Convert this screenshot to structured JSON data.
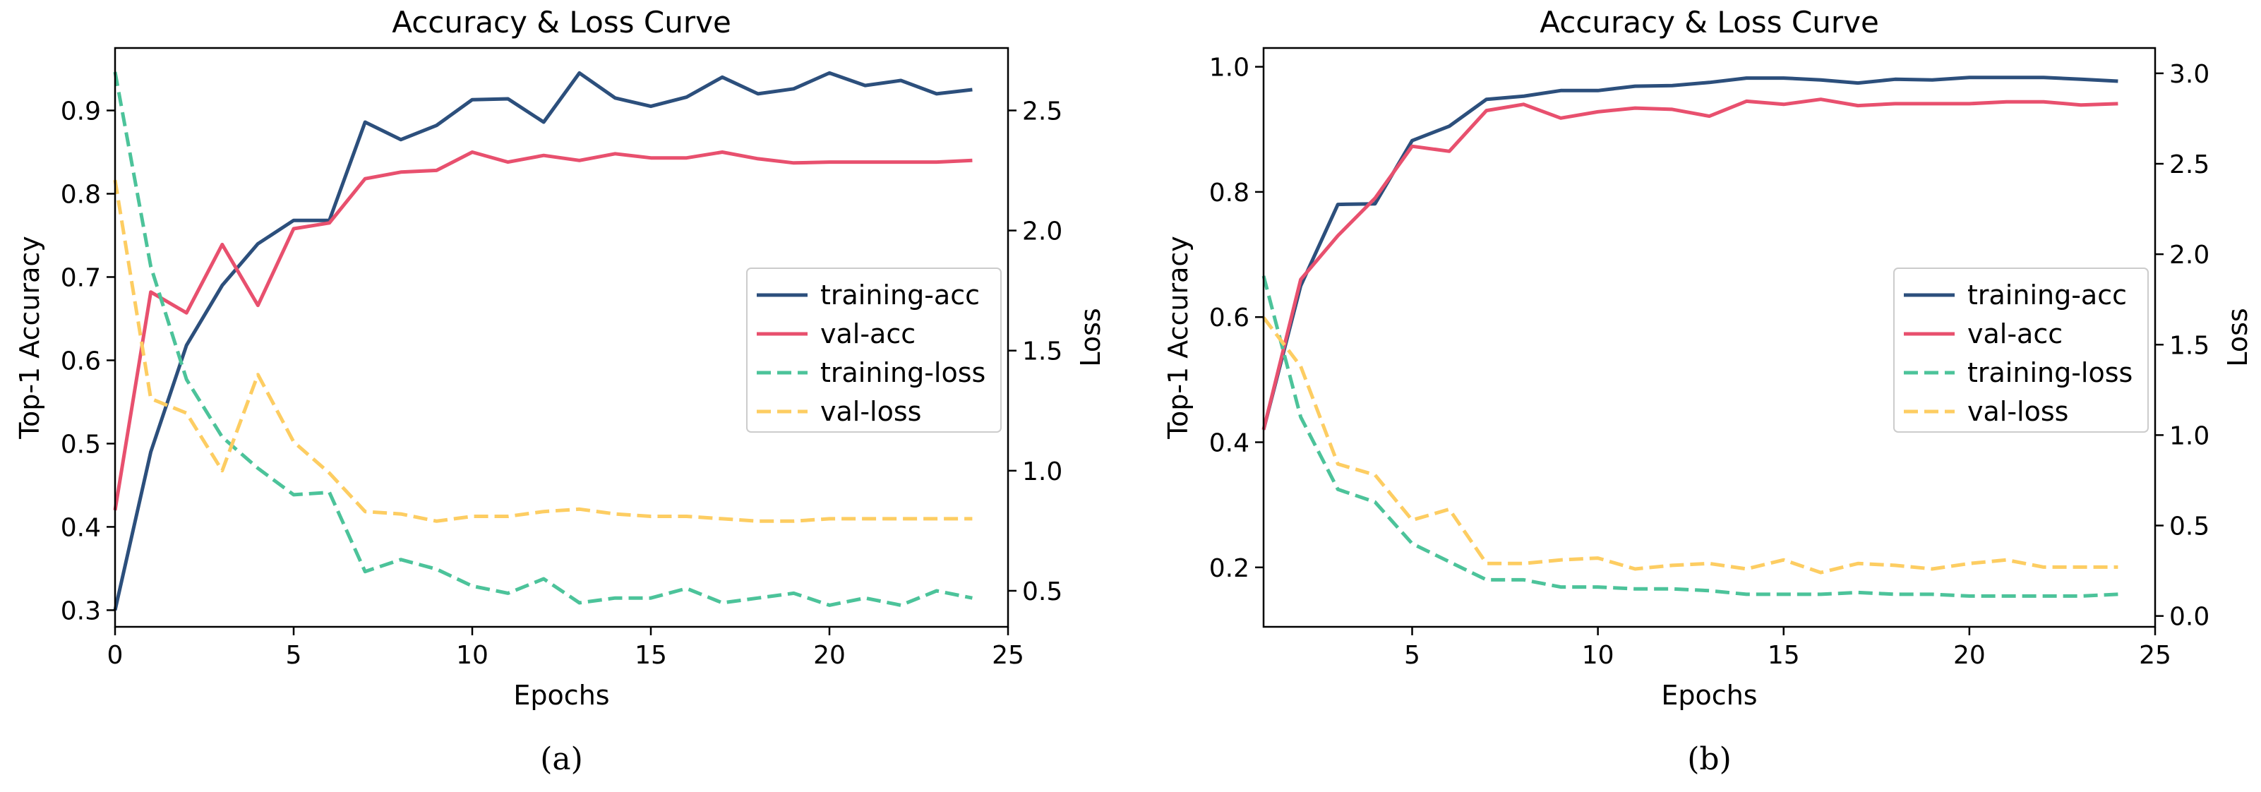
{
  "chart_data": [
    {
      "type": "line",
      "title": "Accuracy & Loss Curve",
      "caption": "(a)",
      "xlabel": "Epochs",
      "ylabel": "Top-1 Accuracy",
      "y2label": "Loss",
      "xlim": [
        0,
        25
      ],
      "ylim": [
        0.28,
        0.975
      ],
      "y2lim": [
        0.35,
        2.76
      ],
      "xticks": [
        0,
        5,
        10,
        15,
        20,
        25
      ],
      "yticks": [
        0.3,
        0.4,
        0.5,
        0.6,
        0.7,
        0.8,
        0.9
      ],
      "y2ticks": [
        0.5,
        1.0,
        1.5,
        2.0,
        2.5
      ],
      "grid": false,
      "legend": "center-right",
      "x": [
        0,
        1,
        2,
        3,
        4,
        5,
        6,
        7,
        8,
        9,
        10,
        11,
        12,
        13,
        14,
        15,
        16,
        17,
        18,
        19,
        20,
        21,
        22,
        23,
        24
      ],
      "series": [
        {
          "name": "training-acc",
          "axis": "left",
          "style": "solid",
          "color": "#2c4f7c",
          "values": [
            0.3,
            0.49,
            0.618,
            0.69,
            0.74,
            0.768,
            0.768,
            0.886,
            0.865,
            0.882,
            0.913,
            0.914,
            0.886,
            0.945,
            0.915,
            0.905,
            0.916,
            0.94,
            0.92,
            0.926,
            0.945,
            0.93,
            0.936,
            0.92,
            0.925
          ]
        },
        {
          "name": "val-acc",
          "axis": "left",
          "style": "solid",
          "color": "#e8506e",
          "values": [
            0.42,
            0.682,
            0.657,
            0.739,
            0.666,
            0.758,
            0.765,
            0.818,
            0.826,
            0.828,
            0.85,
            0.838,
            0.846,
            0.84,
            0.848,
            0.843,
            0.843,
            0.85,
            0.842,
            0.837,
            0.838,
            0.838,
            0.838,
            0.838,
            0.84
          ]
        },
        {
          "name": "training-loss",
          "axis": "right",
          "style": "dashed",
          "color": "#4cc39a",
          "values": [
            2.66,
            1.85,
            1.38,
            1.14,
            1.01,
            0.9,
            0.91,
            0.58,
            0.63,
            0.59,
            0.52,
            0.49,
            0.55,
            0.45,
            0.47,
            0.47,
            0.51,
            0.45,
            0.47,
            0.49,
            0.44,
            0.47,
            0.44,
            0.5,
            0.47
          ]
        },
        {
          "name": "val-loss",
          "axis": "right",
          "style": "dashed",
          "color": "#fdcd62",
          "values": [
            2.21,
            1.3,
            1.24,
            1.0,
            1.4,
            1.12,
            0.99,
            0.83,
            0.82,
            0.79,
            0.81,
            0.81,
            0.83,
            0.84,
            0.82,
            0.81,
            0.81,
            0.8,
            0.79,
            0.79,
            0.8,
            0.8,
            0.8,
            0.8,
            0.8
          ]
        }
      ]
    },
    {
      "type": "line",
      "title": "Accuracy & Loss Curve",
      "caption": "(b)",
      "xlabel": "Epochs",
      "ylabel": "Top-1 Accuracy",
      "y2label": "Loss",
      "xlim": [
        1,
        25
      ],
      "ylim": [
        0.105,
        1.03
      ],
      "y2lim": [
        -0.06,
        3.14
      ],
      "xticks": [
        5,
        10,
        15,
        20,
        25
      ],
      "yticks": [
        0.2,
        0.4,
        0.6,
        0.8,
        1.0
      ],
      "y2ticks": [
        0.0,
        0.5,
        1.0,
        1.5,
        2.0,
        2.5,
        3.0
      ],
      "grid": false,
      "legend": "center-right",
      "x": [
        1,
        2,
        3,
        4,
        5,
        6,
        7,
        8,
        9,
        10,
        11,
        12,
        13,
        14,
        15,
        16,
        17,
        18,
        19,
        20,
        21,
        22,
        23,
        24
      ],
      "series": [
        {
          "name": "training-acc",
          "axis": "left",
          "style": "solid",
          "color": "#2c4f7c",
          "values": [
            0.42,
            0.65,
            0.78,
            0.781,
            0.882,
            0.905,
            0.948,
            0.953,
            0.962,
            0.962,
            0.969,
            0.97,
            0.975,
            0.982,
            0.982,
            0.979,
            0.974,
            0.98,
            0.979,
            0.983,
            0.983,
            0.983,
            0.98,
            0.977
          ]
        },
        {
          "name": "val-acc",
          "axis": "left",
          "style": "solid",
          "color": "#e8506e",
          "values": [
            0.42,
            0.66,
            0.73,
            0.79,
            0.873,
            0.865,
            0.93,
            0.94,
            0.918,
            0.928,
            0.934,
            0.932,
            0.921,
            0.945,
            0.94,
            0.948,
            0.938,
            0.941,
            0.941,
            0.941,
            0.944,
            0.944,
            0.939,
            0.941
          ]
        },
        {
          "name": "training-loss",
          "axis": "right",
          "style": "dashed",
          "color": "#4cc39a",
          "values": [
            1.88,
            1.1,
            0.7,
            0.63,
            0.4,
            0.3,
            0.2,
            0.2,
            0.16,
            0.16,
            0.15,
            0.15,
            0.14,
            0.12,
            0.12,
            0.12,
            0.13,
            0.12,
            0.12,
            0.11,
            0.11,
            0.11,
            0.11,
            0.12
          ]
        },
        {
          "name": "val-loss",
          "axis": "right",
          "style": "dashed",
          "color": "#fdcd62",
          "values": [
            1.65,
            1.38,
            0.84,
            0.78,
            0.53,
            0.59,
            0.29,
            0.29,
            0.31,
            0.32,
            0.26,
            0.28,
            0.29,
            0.26,
            0.31,
            0.24,
            0.29,
            0.28,
            0.26,
            0.29,
            0.31,
            0.27,
            0.27,
            0.27
          ]
        }
      ]
    }
  ]
}
